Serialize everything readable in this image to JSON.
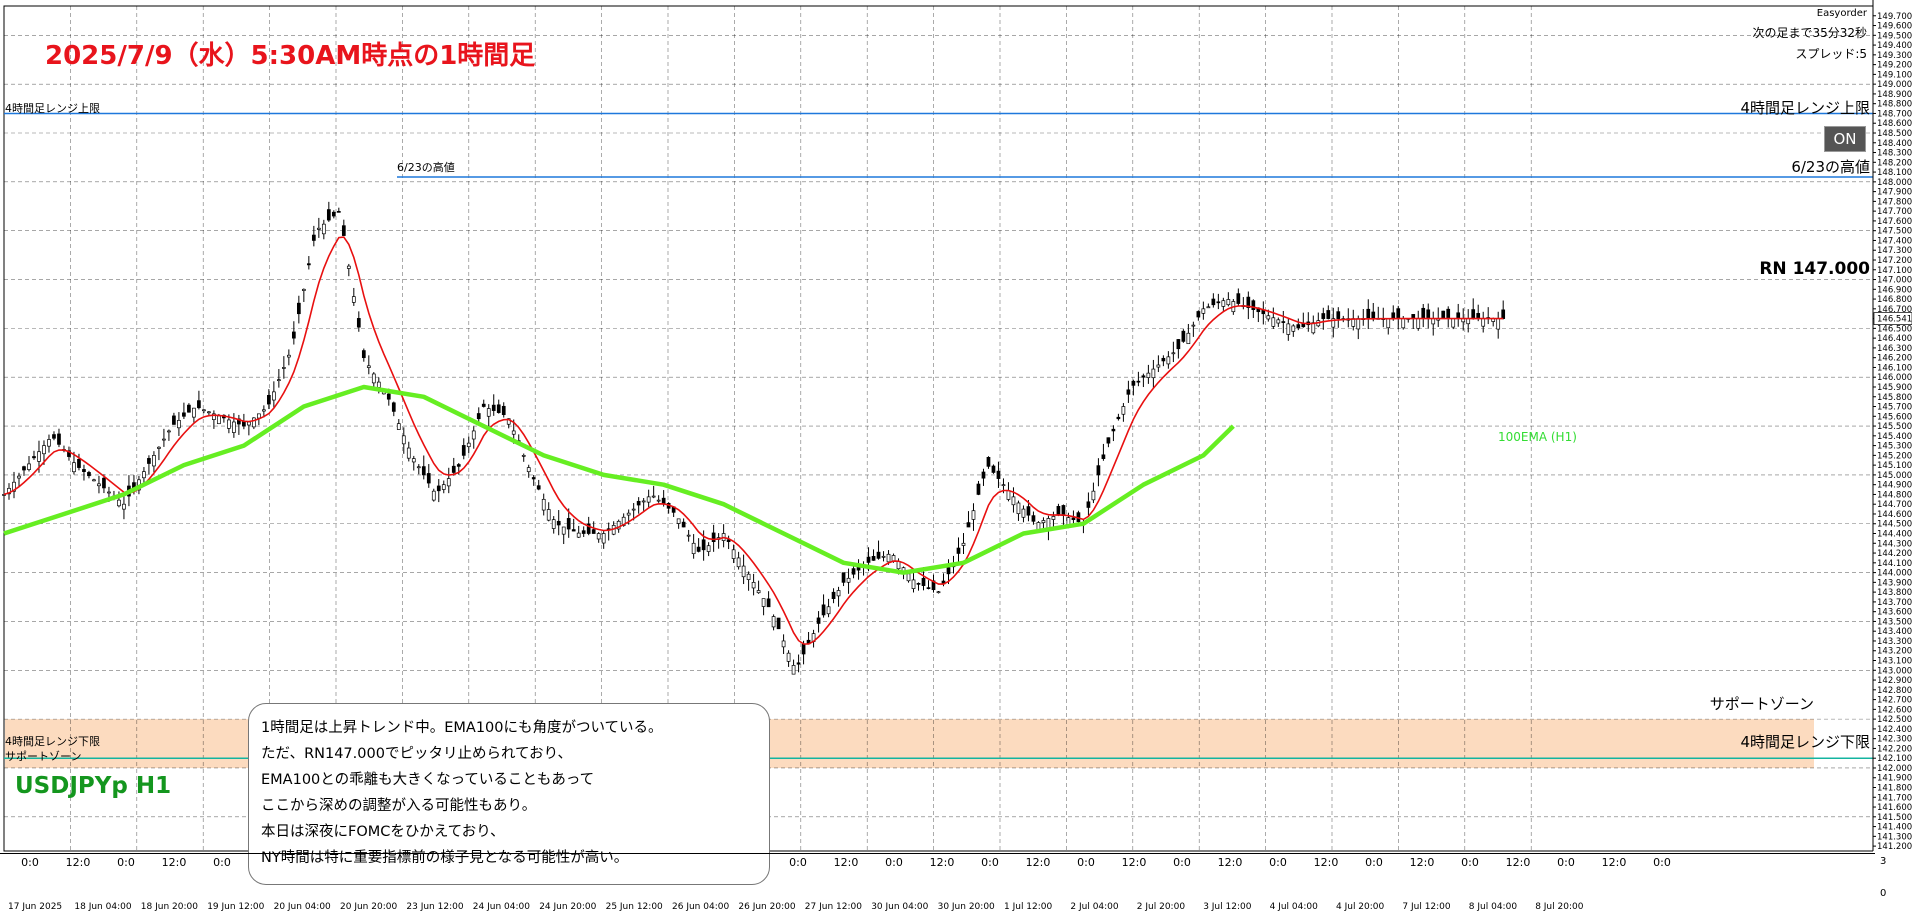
{
  "title": "2025/7/9（水）5:30AM時点の1時間足",
  "symbol_label": "USDJPYp H1",
  "rn_label": "RN 147.000",
  "easyorder": {
    "label": "Easyorder",
    "next_bar": "次の足まで35分32秒",
    "spread": "スプレッド:5",
    "toggle": "ON"
  },
  "lines": {
    "upper_4h": {
      "left_label": "4時間足レンジ上限",
      "right_label": "4時間足レンジ上限",
      "color": "#1e78dc"
    },
    "high_623": {
      "left_label": "6/23の高値",
      "right_label": "6/23の高値",
      "color": "#1e78dc"
    },
    "lower_4h": {
      "left_label": "4時間足レンジ下限",
      "right_label": "4時間足レンジ下限",
      "color": "#14b4a0"
    },
    "support": {
      "left_label": "サポートゾーン",
      "right_label": "サポートゾーン",
      "color": "#fcd7b8"
    }
  },
  "ema_label": "100EMA (H1)",
  "note_lines": [
    "1時間足は上昇トレンド中。EMA100にも角度がついている。",
    "ただ、RN147.000でピッタリ止められており、",
    "EMA100との乖離も大きくなっていることもあって",
    "ここから深めの調整が入る可能性もあり。",
    "本日は深夜にFOMCをひかえており、",
    "NY時間は特に重要指標前の様子見となる可能性が高い。"
  ],
  "sub_panel_labels": [
    "3",
    "0"
  ],
  "chart_data": {
    "type": "line",
    "title": "2025/7/9（水）5:30AM時点の1時間足",
    "symbol": "USDJPYp",
    "timeframe": "H1",
    "ylim": [
      141.15,
      149.8
    ],
    "y_ticks": [
      141.2,
      141.3,
      141.4,
      141.5,
      141.6,
      141.7,
      141.8,
      141.9,
      142.0,
      142.1,
      142.2,
      142.3,
      142.4,
      142.5,
      142.6,
      142.7,
      142.8,
      142.9,
      143.0,
      143.1,
      143.2,
      143.3,
      143.4,
      143.5,
      143.6,
      143.7,
      143.8,
      143.9,
      144.0,
      144.1,
      144.2,
      144.3,
      144.4,
      144.5,
      144.6,
      144.7,
      144.8,
      144.9,
      145.0,
      145.1,
      145.2,
      145.3,
      145.4,
      145.5,
      145.6,
      145.7,
      145.8,
      145.9,
      146.0,
      146.1,
      146.2,
      146.3,
      146.4,
      146.5,
      146.6,
      146.7,
      146.8,
      146.9,
      147.0,
      147.1,
      147.2,
      147.3,
      147.4,
      147.5,
      147.6,
      147.7,
      147.8,
      147.9,
      148.0,
      148.1,
      148.2,
      148.3,
      148.4,
      148.5,
      148.6,
      148.7,
      148.8,
      148.9,
      149.0,
      149.1,
      149.2,
      149.3,
      149.4,
      149.5,
      149.6,
      149.7
    ],
    "y_tick_labels": [
      "141.200",
      "141.300",
      "141.400",
      "141.500",
      "141.600",
      "141.700",
      "141.800",
      "141.900",
      "142.000",
      "142.100",
      "142.200",
      "142.300",
      "142.400",
      "142.500",
      "142.600",
      "142.700",
      "142.800",
      "142.900",
      "143.000",
      "143.100",
      "143.200",
      "143.300",
      "143.400",
      "143.500",
      "143.600",
      "143.700",
      "143.800",
      "143.900",
      "144.000",
      "144.100",
      "144.200",
      "144.300",
      "144.400",
      "144.500",
      "144.600",
      "144.700",
      "144.800",
      "144.900",
      "145.000",
      "145.100",
      "145.200",
      "145.300",
      "145.400",
      "145.500",
      "145.600",
      "145.700",
      "145.800",
      "145.900",
      "146.000",
      "146.100",
      "146.200",
      "146.300",
      "146.400",
      "146.500",
      "146.600",
      "146.700",
      "146.800",
      "146.900",
      "147.000",
      "147.100",
      "147.200",
      "147.300",
      "147.400",
      "147.500",
      "147.600",
      "147.700",
      "147.800",
      "147.900",
      "148.000",
      "148.100",
      "148.200",
      "148.300",
      "148.400",
      "148.500",
      "148.600",
      "148.700",
      "148.800",
      "148.900",
      "149.000",
      "149.100",
      "149.200",
      "149.300",
      "149.400",
      "149.500",
      "149.600",
      "149.700"
    ],
    "price_tag": "146.541",
    "x": [
      0,
      24,
      48,
      72,
      96,
      120,
      144,
      168,
      192,
      216,
      240,
      264,
      288,
      312,
      336,
      360,
      384,
      408,
      432,
      456,
      480,
      504,
      528,
      552,
      576,
      600,
      624,
      648,
      672,
      696,
      720,
      744,
      768,
      792,
      816,
      840,
      864,
      888,
      912,
      936,
      960,
      984,
      1008,
      1032,
      1056,
      1080,
      1104,
      1128,
      1152,
      1176,
      1200,
      1224,
      1248,
      1272,
      1296,
      1320,
      1344,
      1368,
      1392,
      1416,
      1440,
      1464,
      1476,
      1488,
      1500
    ],
    "price": [
      144.8,
      145.1,
      145.4,
      145.1,
      144.9,
      144.7,
      145.1,
      145.5,
      145.7,
      145.6,
      145.5,
      145.7,
      146.3,
      147.5,
      147.7,
      146.2,
      145.8,
      145.2,
      144.8,
      145.1,
      145.7,
      145.6,
      145.0,
      144.5,
      144.4,
      144.4,
      144.6,
      144.8,
      144.6,
      144.2,
      144.4,
      144.0,
      143.6,
      143.0,
      143.5,
      143.9,
      144.1,
      144.2,
      143.9,
      143.8,
      144.3,
      145.1,
      144.8,
      144.5,
      144.6,
      144.5,
      145.3,
      145.9,
      146.1,
      146.3,
      146.7,
      146.8,
      146.7,
      146.6,
      146.5,
      146.6,
      146.6,
      146.6,
      146.6,
      146.6,
      146.6,
      146.6,
      146.6,
      146.6,
      146.6
    ],
    "series": [
      {
        "name": "100EMA (H1)",
        "color": "#66ee22",
        "x": [
          0,
          60,
          120,
          180,
          240,
          300,
          360,
          420,
          480,
          540,
          600,
          660,
          720,
          780,
          840,
          900,
          960,
          1020,
          1080,
          1140,
          1200,
          1230
        ],
        "y": [
          144.4,
          144.6,
          144.8,
          145.1,
          145.3,
          145.7,
          145.9,
          145.8,
          145.5,
          145.2,
          145.0,
          144.9,
          144.7,
          144.4,
          144.1,
          144.0,
          144.1,
          144.4,
          144.5,
          144.9,
          145.2,
          145.5
        ]
      }
    ],
    "levels": [
      {
        "name": "4時間足レンジ上限",
        "y": 148.7
      },
      {
        "name": "6/23の高値",
        "y": 148.05
      },
      {
        "name": "4時間足レンジ下限",
        "y": 142.1
      },
      {
        "name": "サポートゾーン",
        "y_range": [
          142.0,
          142.5
        ]
      }
    ],
    "x_tick_labels": [
      "0:0",
      "12:0",
      "0:0",
      "12:0",
      "0:0",
      "",
      "",
      "",
      "",
      "",
      "",
      "",
      "",
      "",
      "",
      "",
      "0:0",
      "12:0",
      "0:0",
      "12:0",
      "0:0",
      "12:0",
      "0:0",
      "12:0",
      "0:0",
      "12:0",
      "0:0",
      "12:0",
      "0:0",
      "12:0",
      "0:0",
      "12:0",
      "0:0",
      "12:0",
      "0:0"
    ],
    "x_date_labels": [
      "17 Jun 2025",
      "18 Jun 04:00",
      "18 Jun 20:00",
      "19 Jun 12:00",
      "20 Jun 04:00",
      "20 Jun 20:00",
      "23 Jun 12:00",
      "24 Jun 04:00",
      "24 Jun 20:00",
      "25 Jun 12:00",
      "26 Jun 04:00",
      "26 Jun 20:00",
      "27 Jun 12:00",
      "30 Jun 04:00",
      "30 Jun 20:00",
      "1 Jul 12:00",
      "2 Jul 04:00",
      "2 Jul 20:00",
      "3 Jul 12:00",
      "4 Jul 04:00",
      "4 Jul 20:00",
      "7 Jul 12:00",
      "8 Jul 04:00",
      "8 Jul 20:00"
    ],
    "grid": true
  }
}
